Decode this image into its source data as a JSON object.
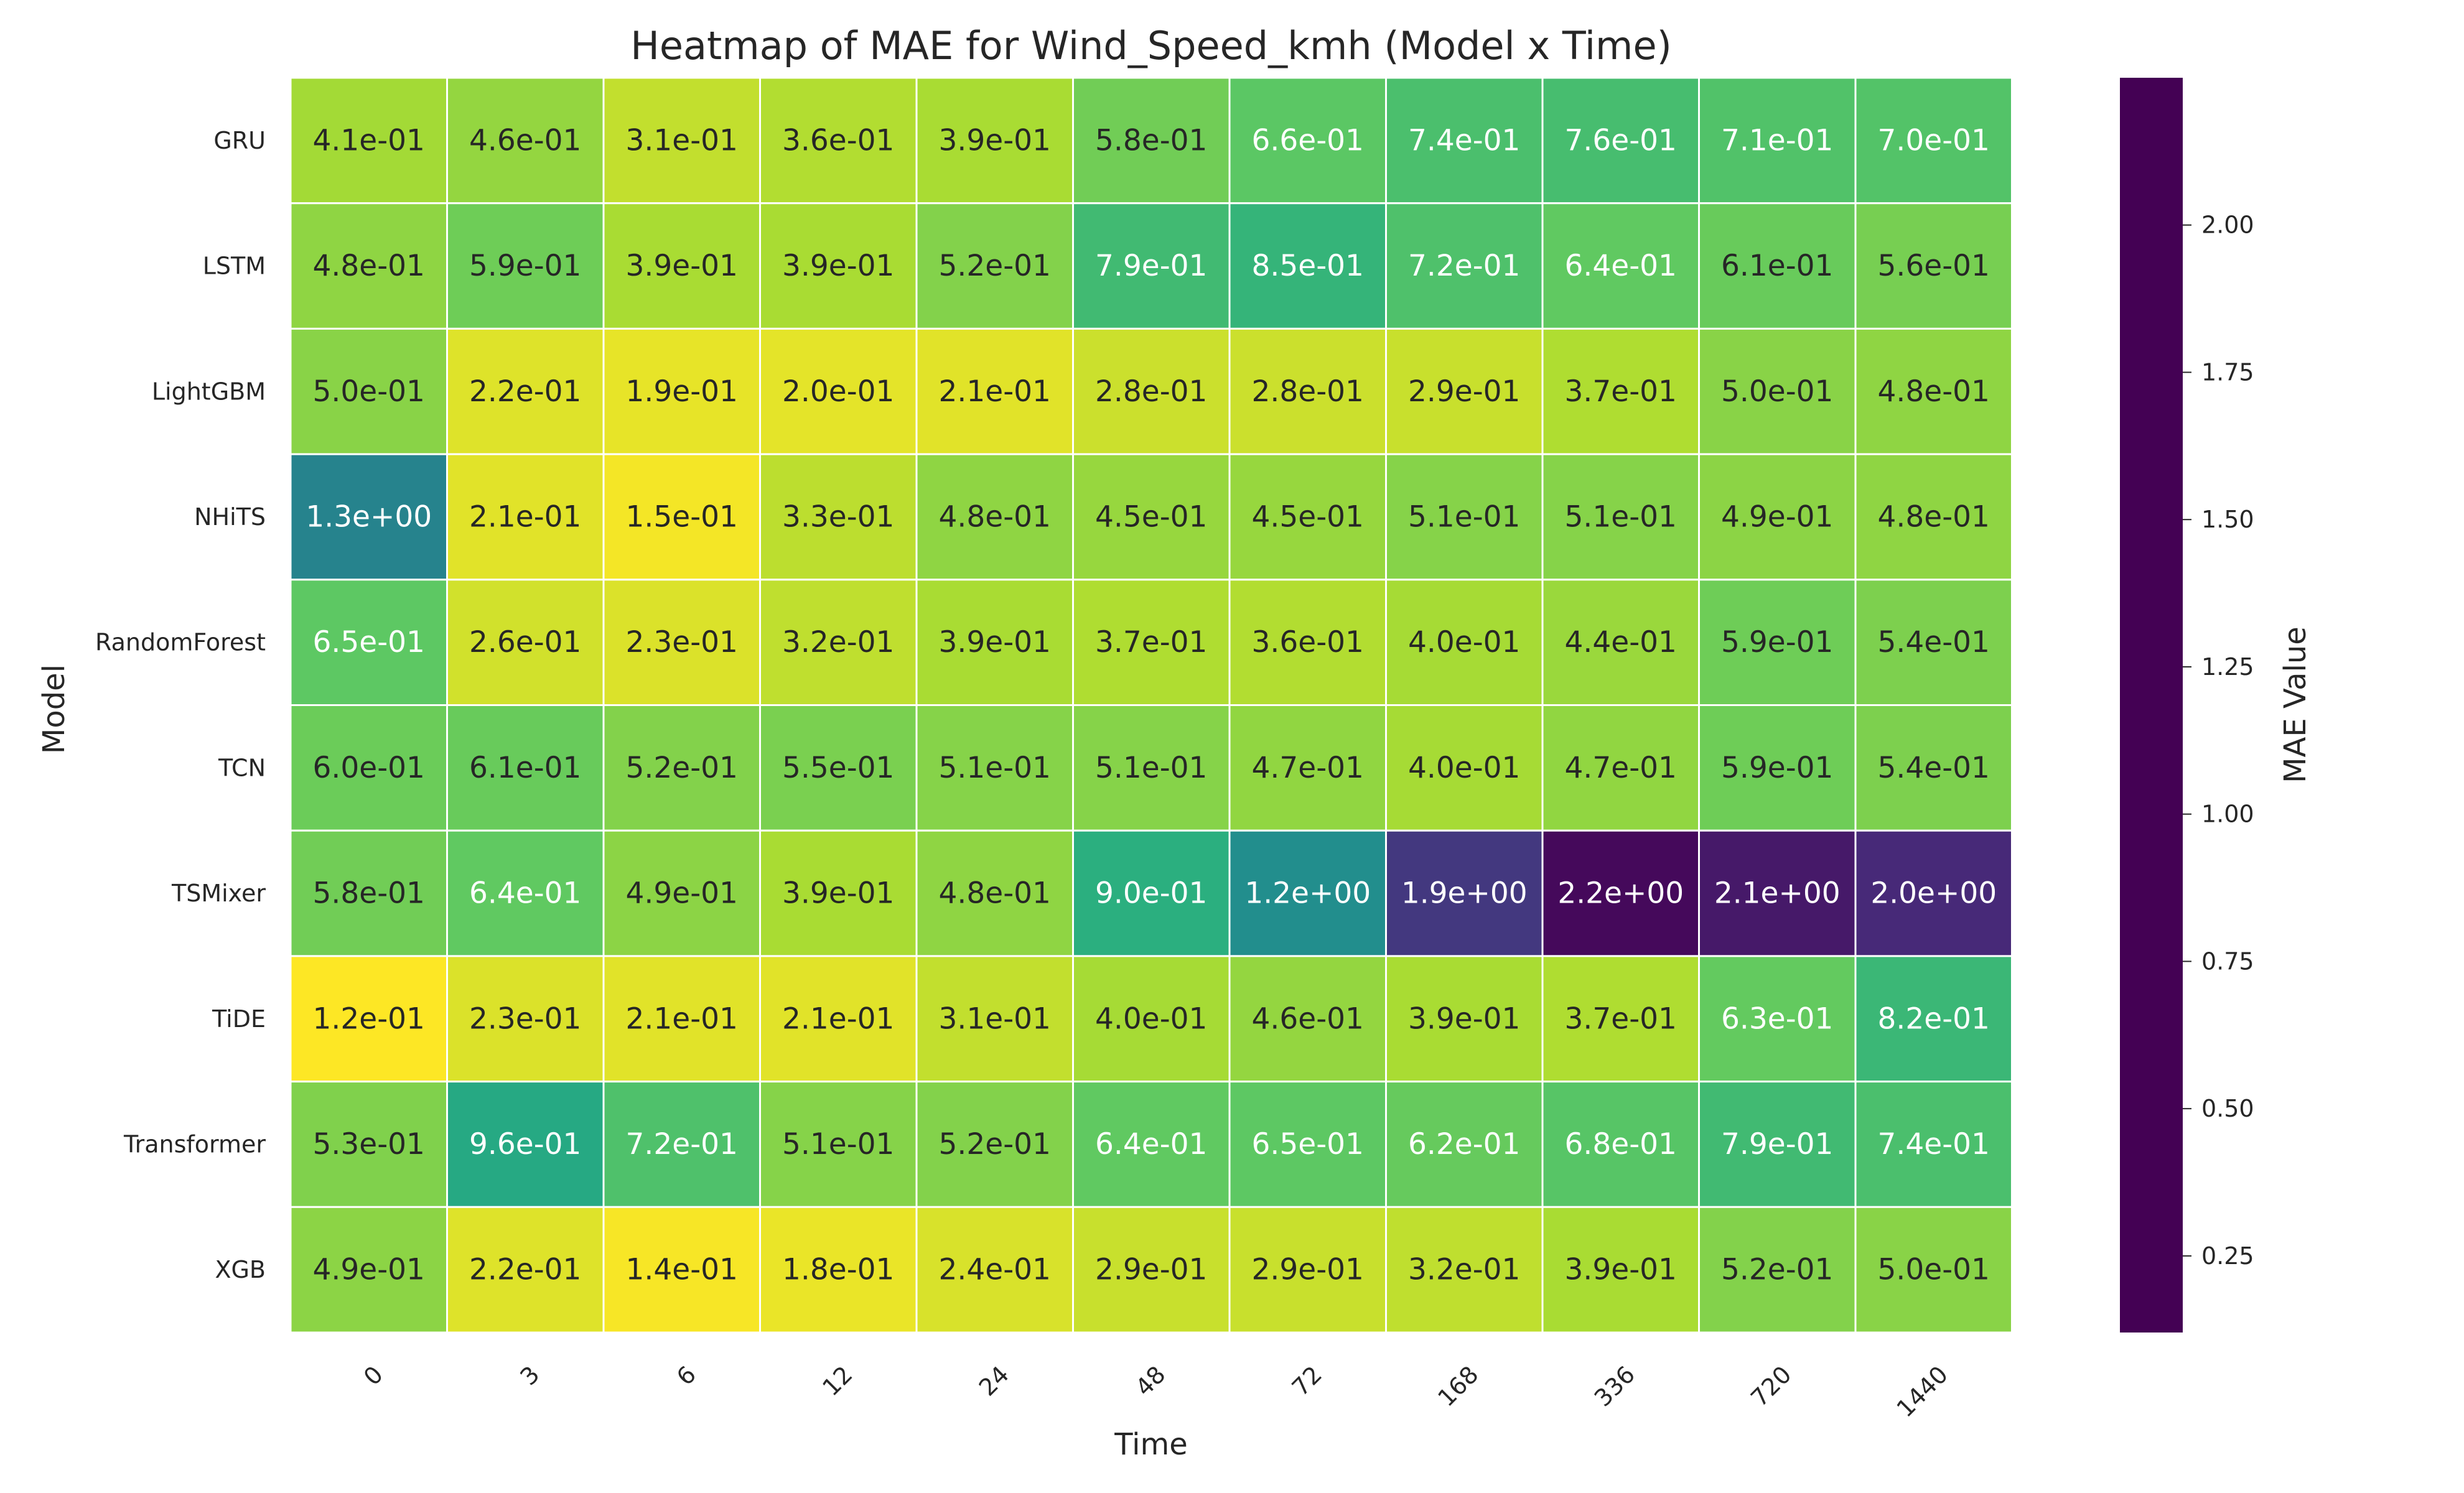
{
  "chart_data": {
    "type": "heatmap",
    "title": "Heatmap of MAE for Wind_Speed_kmh (Model x Time)",
    "xlabel": "Time",
    "ylabel": "Model",
    "colorbar_label": "MAE Value",
    "colormap": "viridis_r",
    "value_range": [
      0.12,
      2.25
    ],
    "colorbar_ticks": [
      "0.25",
      "0.50",
      "0.75",
      "1.00",
      "1.25",
      "1.50",
      "1.75",
      "2.00"
    ],
    "x_categories": [
      "0",
      "3",
      "6",
      "12",
      "24",
      "48",
      "72",
      "168",
      "336",
      "720",
      "1440"
    ],
    "y_categories": [
      "GRU",
      "LSTM",
      "LightGBM",
      "NHiTS",
      "RandomForest",
      "TCN",
      "TSMixer",
      "TiDE",
      "Transformer",
      "XGB"
    ],
    "values": [
      [
        0.41,
        0.46,
        0.31,
        0.36,
        0.39,
        0.58,
        0.66,
        0.74,
        0.76,
        0.71,
        0.7
      ],
      [
        0.48,
        0.59,
        0.39,
        0.39,
        0.52,
        0.79,
        0.85,
        0.72,
        0.64,
        0.61,
        0.56
      ],
      [
        0.5,
        0.22,
        0.19,
        0.2,
        0.21,
        0.28,
        0.28,
        0.29,
        0.37,
        0.5,
        0.48
      ],
      [
        1.3,
        0.21,
        0.15,
        0.33,
        0.48,
        0.45,
        0.45,
        0.51,
        0.51,
        0.49,
        0.48
      ],
      [
        0.65,
        0.26,
        0.23,
        0.32,
        0.39,
        0.37,
        0.36,
        0.4,
        0.44,
        0.59,
        0.54
      ],
      [
        0.6,
        0.61,
        0.52,
        0.55,
        0.51,
        0.51,
        0.47,
        0.4,
        0.47,
        0.59,
        0.54
      ],
      [
        0.58,
        0.64,
        0.49,
        0.39,
        0.48,
        0.9,
        1.2,
        1.9,
        2.2,
        2.1,
        2.0
      ],
      [
        0.12,
        0.23,
        0.21,
        0.21,
        0.31,
        0.4,
        0.46,
        0.39,
        0.37,
        0.63,
        0.82
      ],
      [
        0.53,
        0.96,
        0.72,
        0.51,
        0.52,
        0.64,
        0.65,
        0.62,
        0.68,
        0.79,
        0.74
      ],
      [
        0.49,
        0.22,
        0.14,
        0.18,
        0.24,
        0.29,
        0.29,
        0.32,
        0.39,
        0.52,
        0.5
      ]
    ],
    "labels": [
      [
        "4.1e-01",
        "4.6e-01",
        "3.1e-01",
        "3.6e-01",
        "3.9e-01",
        "5.8e-01",
        "6.6e-01",
        "7.4e-01",
        "7.6e-01",
        "7.1e-01",
        "7.0e-01"
      ],
      [
        "4.8e-01",
        "5.9e-01",
        "3.9e-01",
        "3.9e-01",
        "5.2e-01",
        "7.9e-01",
        "8.5e-01",
        "7.2e-01",
        "6.4e-01",
        "6.1e-01",
        "5.6e-01"
      ],
      [
        "5.0e-01",
        "2.2e-01",
        "1.9e-01",
        "2.0e-01",
        "2.1e-01",
        "2.8e-01",
        "2.8e-01",
        "2.9e-01",
        "3.7e-01",
        "5.0e-01",
        "4.8e-01"
      ],
      [
        "1.3e+00",
        "2.1e-01",
        "1.5e-01",
        "3.3e-01",
        "4.8e-01",
        "4.5e-01",
        "4.5e-01",
        "5.1e-01",
        "5.1e-01",
        "4.9e-01",
        "4.8e-01"
      ],
      [
        "6.5e-01",
        "2.6e-01",
        "2.3e-01",
        "3.2e-01",
        "3.9e-01",
        "3.7e-01",
        "3.6e-01",
        "4.0e-01",
        "4.4e-01",
        "5.9e-01",
        "5.4e-01"
      ],
      [
        "6.0e-01",
        "6.1e-01",
        "5.2e-01",
        "5.5e-01",
        "5.1e-01",
        "5.1e-01",
        "4.7e-01",
        "4.0e-01",
        "4.7e-01",
        "5.9e-01",
        "5.4e-01"
      ],
      [
        "5.8e-01",
        "6.4e-01",
        "4.9e-01",
        "3.9e-01",
        "4.8e-01",
        "9.0e-01",
        "1.2e+00",
        "1.9e+00",
        "2.2e+00",
        "2.1e+00",
        "2.0e+00"
      ],
      [
        "1.2e-01",
        "2.3e-01",
        "2.1e-01",
        "2.1e-01",
        "3.1e-01",
        "4.0e-01",
        "4.6e-01",
        "3.9e-01",
        "3.7e-01",
        "6.3e-01",
        "8.2e-01"
      ],
      [
        "5.3e-01",
        "9.6e-01",
        "7.2e-01",
        "5.1e-01",
        "5.2e-01",
        "6.4e-01",
        "6.5e-01",
        "6.2e-01",
        "6.8e-01",
        "7.9e-01",
        "7.4e-01"
      ],
      [
        "4.9e-01",
        "2.2e-01",
        "1.4e-01",
        "1.8e-01",
        "2.4e-01",
        "2.9e-01",
        "2.9e-01",
        "3.2e-01",
        "3.9e-01",
        "5.2e-01",
        "5.0e-01"
      ]
    ]
  }
}
